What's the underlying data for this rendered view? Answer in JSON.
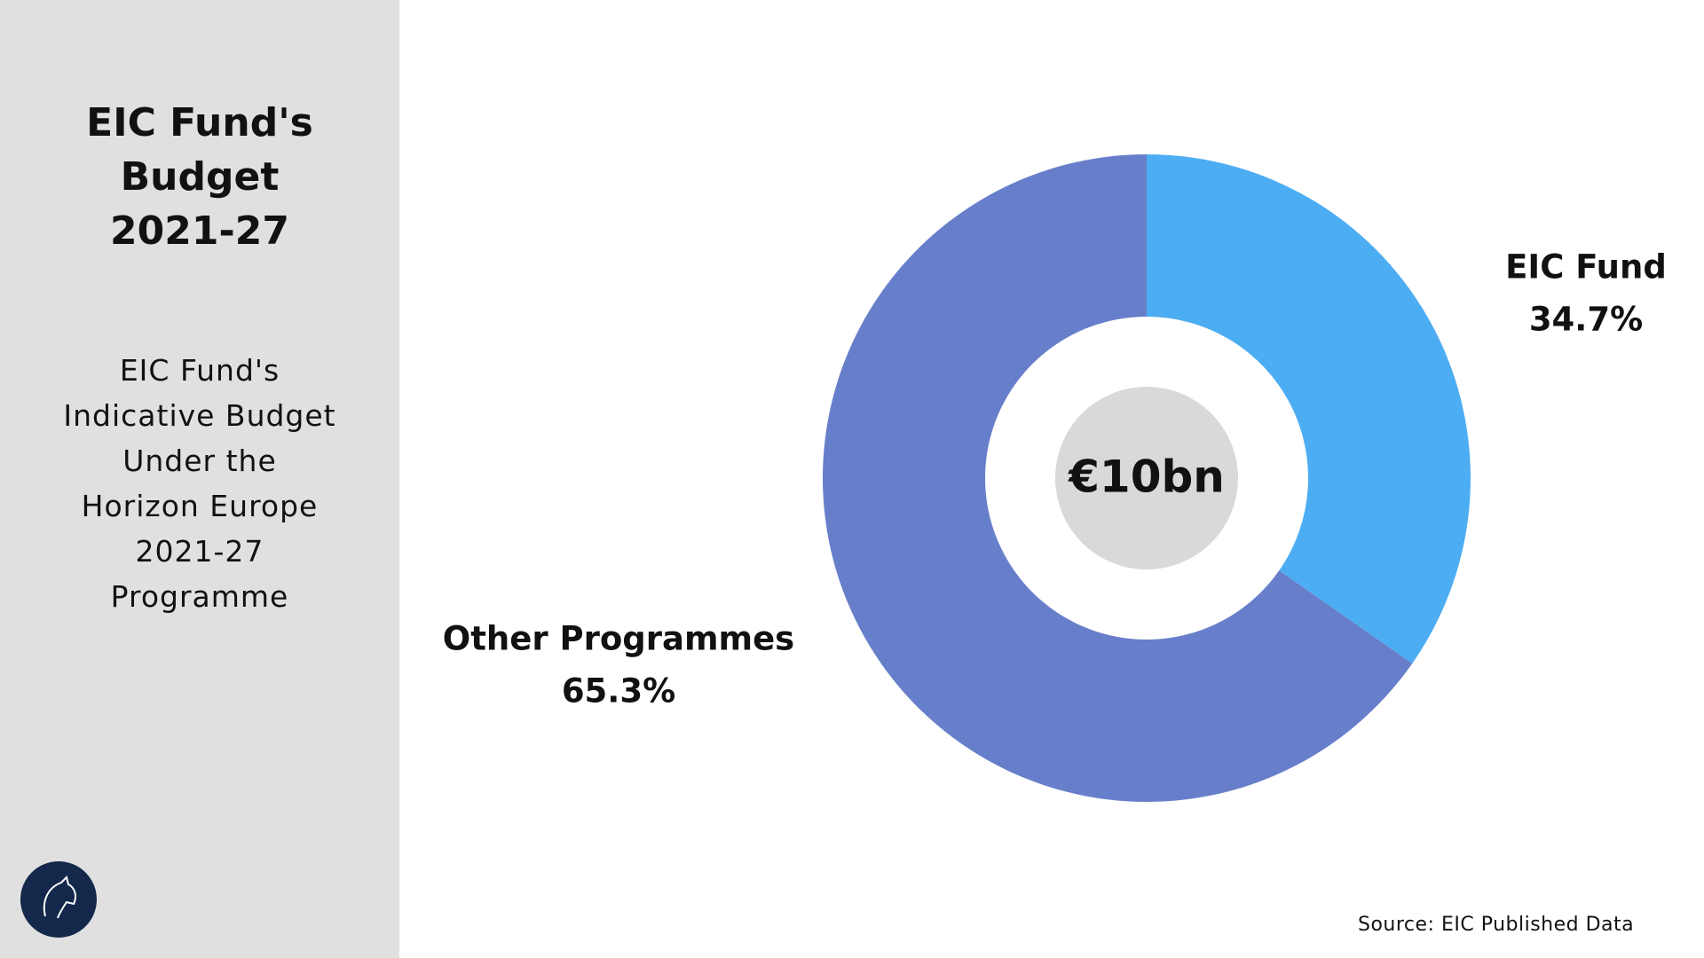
{
  "chart_data": {
    "type": "donut",
    "title": "EIC Fund's Budget 2021-27",
    "subtitle": "EIC Fund's Indicative Budget Under the Horizon Europe 2021-27 Programme",
    "center_label": "€10bn",
    "categories": [
      "EIC Fund",
      "Other Programmes"
    ],
    "values": [
      34.7,
      65.3
    ],
    "value_labels": [
      "34.7%",
      "65.3%"
    ],
    "colors": [
      "#4dadf3",
      "#677fca"
    ],
    "source": "Source: EIC Published Data"
  }
}
